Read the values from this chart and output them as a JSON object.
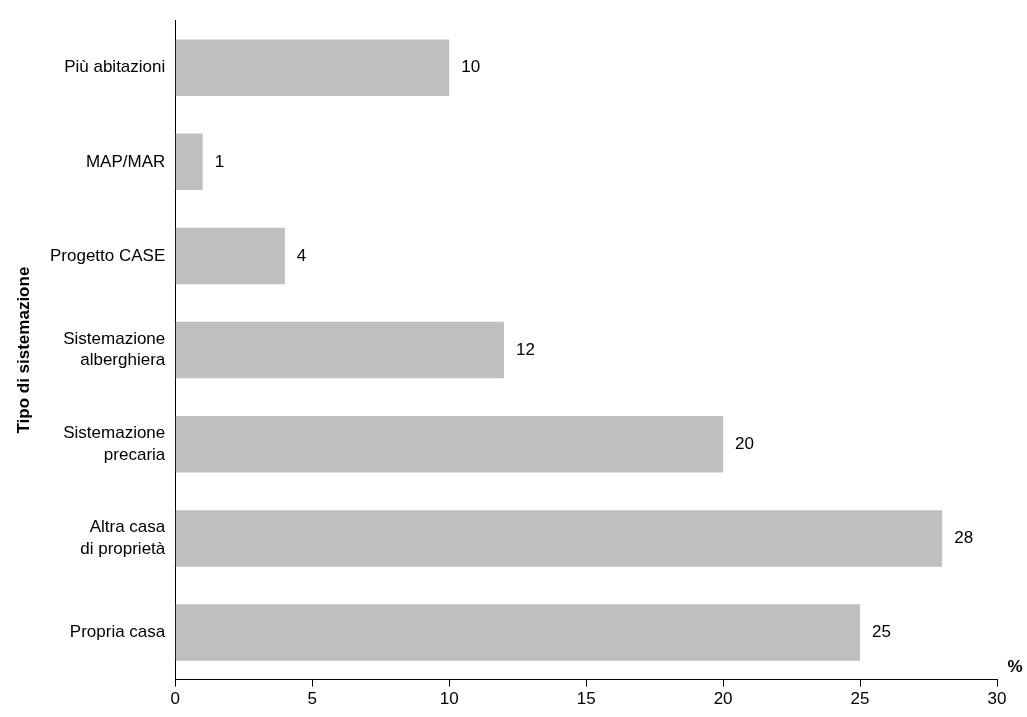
{
  "chart_data": {
    "type": "bar",
    "orientation": "horizontal",
    "categories": [
      "Più abitazioni",
      "MAP/MAR",
      "Progetto CASE",
      "Sistemazione\nalberghiera",
      "Sistemazione\nprecaria",
      "Altra casa\ndi proprietà",
      "Propria casa"
    ],
    "values": [
      10,
      1,
      4,
      12,
      20,
      28,
      25
    ],
    "color": "#bfbfbf",
    "xlim": [
      0,
      30
    ],
    "xticks": [
      0,
      5,
      10,
      15,
      20,
      25,
      30
    ],
    "xlabel": "%",
    "ylabel": "Tipo di sistemazione",
    "data_labels": true,
    "grid": false,
    "legend": false
  }
}
